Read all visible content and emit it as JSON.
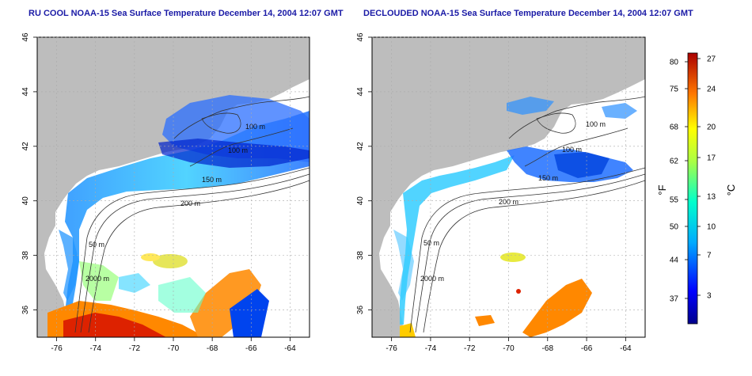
{
  "titles": {
    "left": "RU COOL NOAA-15 Sea Surface Temperature December 14, 2004 12:07 GMT",
    "right": "DECLOUDED NOAA-15 Sea Surface Temperature December 14, 2004 12:07 GMT"
  },
  "map": {
    "lon_range": [
      -77,
      -63
    ],
    "lat_range": [
      35,
      46
    ],
    "lon_ticks": [
      "-76",
      "-74",
      "-72",
      "-70",
      "-68",
      "-66",
      "-64"
    ],
    "lat_ticks": [
      "36",
      "38",
      "40",
      "42",
      "44",
      "46"
    ],
    "contour_labels": {
      "left": [
        "100 m",
        "100 m",
        "200 m",
        "50 m",
        "2000 m",
        "150 m"
      ],
      "right": [
        "100 m",
        "100 m",
        "200 m",
        "50 m",
        "2000 m",
        "150 m"
      ]
    }
  },
  "colorbar": {
    "unit_f": "°F",
    "unit_c": "°C",
    "f_ticks": [
      "80",
      "75",
      "68",
      "62",
      "55",
      "50",
      "44",
      "37"
    ],
    "c_ticks": [
      "27",
      "24",
      "20",
      "17",
      "13",
      "10",
      "7",
      "3"
    ]
  },
  "colors": {
    "land": "#bdbdbd",
    "title": "#1a1aa6",
    "contour": "#333333"
  }
}
